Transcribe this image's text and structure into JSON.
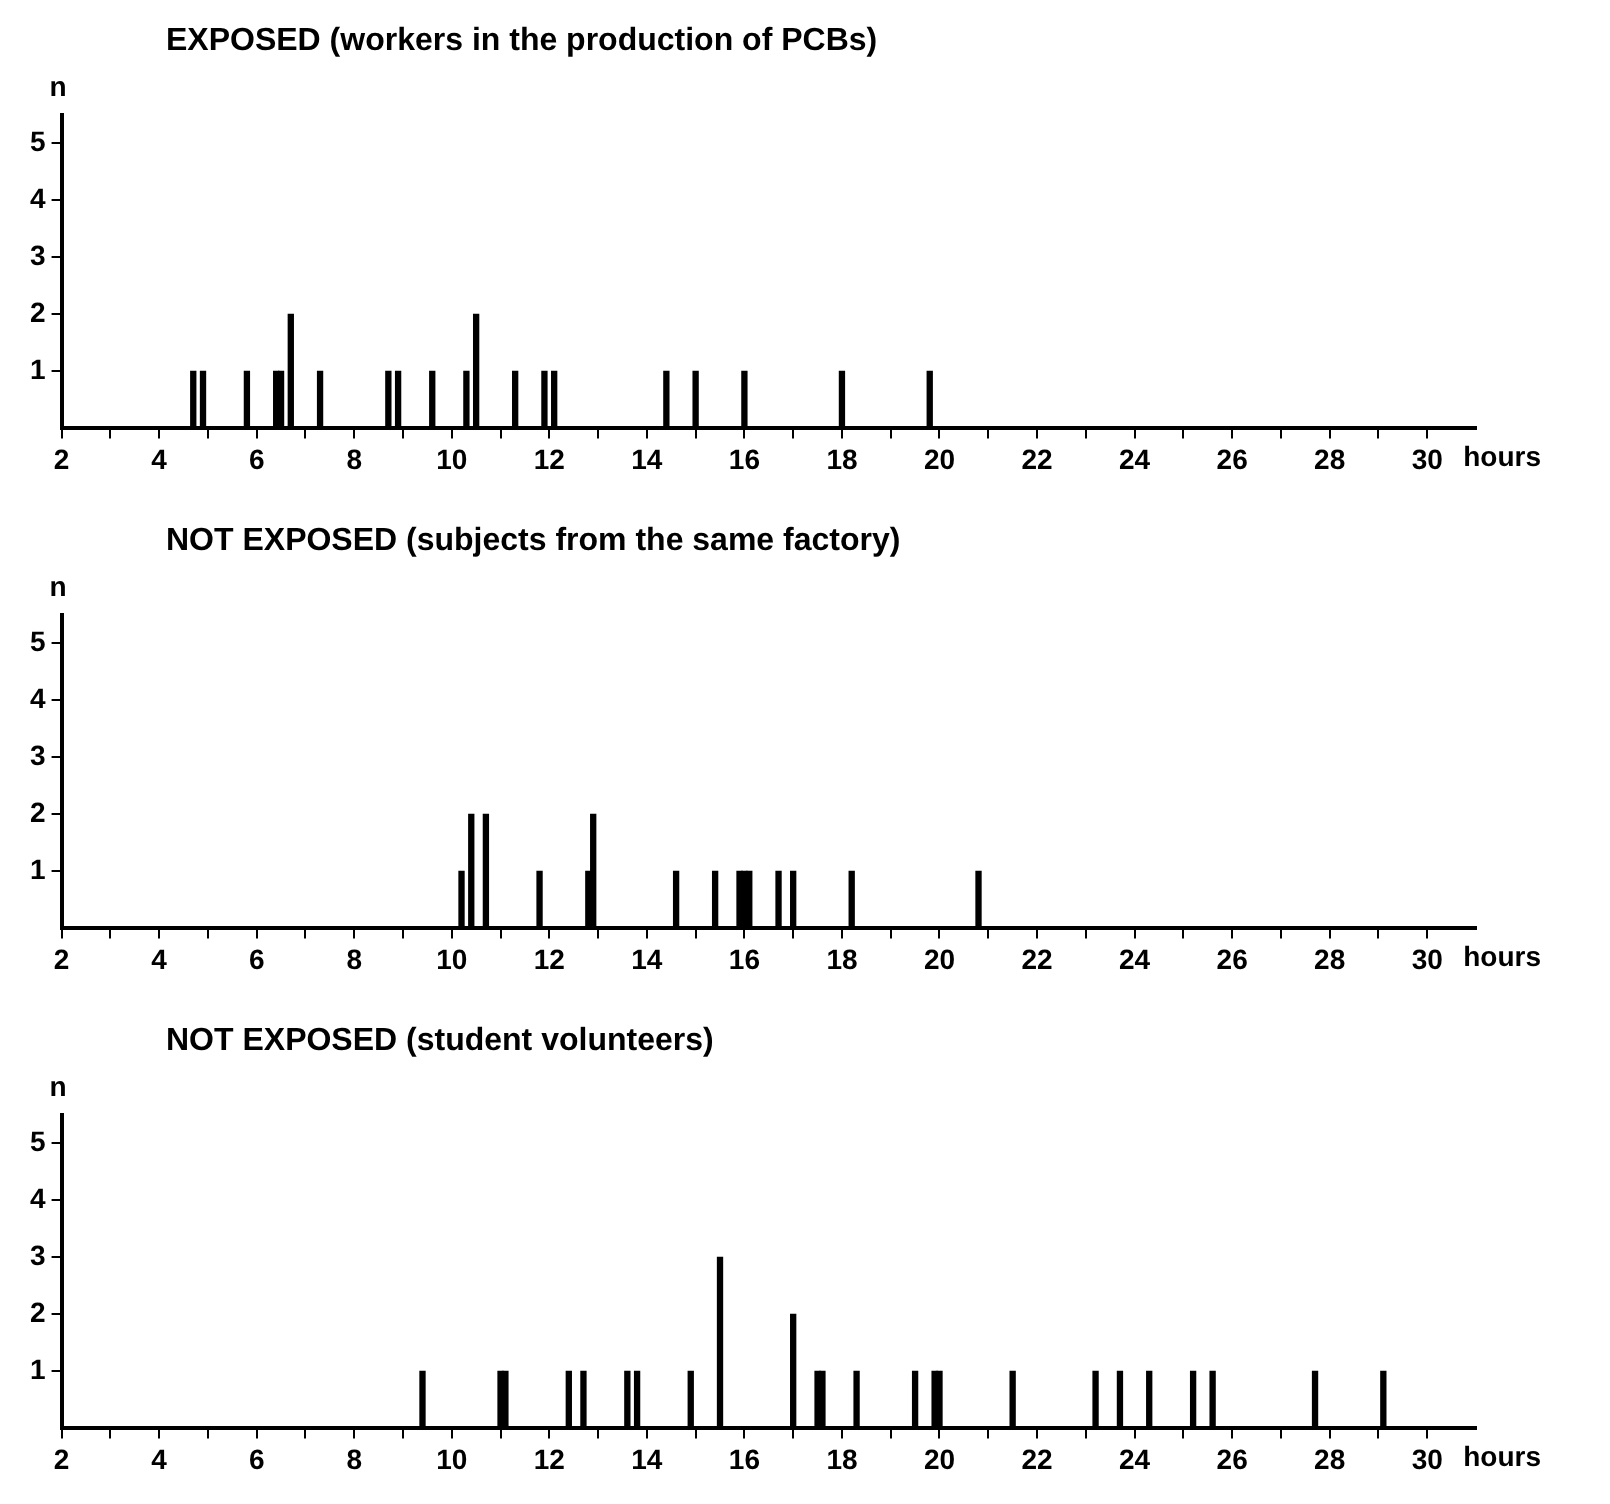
{
  "chart_data": [
    {
      "type": "bar",
      "title": "EXPOSED (workers in the production of PCBs)",
      "xlabel": "hours",
      "ylabel": "n",
      "color": "#000000",
      "grid": false,
      "x": [
        4.7,
        4.9,
        5.8,
        6.4,
        6.5,
        6.7,
        7.3,
        8.7,
        8.9,
        9.6,
        10.3,
        10.5,
        11.3,
        11.9,
        12.1,
        14.4,
        15.0,
        16.0,
        18.0,
        19.8
      ],
      "values": [
        1,
        1,
        1,
        1,
        1,
        2,
        1,
        1,
        1,
        1,
        1,
        2,
        1,
        1,
        1,
        1,
        1,
        1,
        1,
        1
      ],
      "xlim": [
        2,
        31
      ],
      "ylim": [
        0,
        5.5
      ],
      "yticks": [
        1,
        2,
        3,
        4,
        5
      ],
      "xticks": [
        2,
        {
          "value": 3,
          "label": null
        },
        4,
        {
          "value": 5,
          "label": null
        },
        6,
        {
          "value": 7,
          "label": null
        },
        8,
        {
          "value": 9,
          "label": null
        },
        10,
        {
          "value": 11,
          "label": null
        },
        12,
        {
          "value": 13,
          "label": null
        },
        14,
        {
          "value": 15,
          "label": null
        },
        16,
        {
          "value": 17,
          "label": null
        },
        18,
        {
          "value": 19,
          "label": null
        },
        20,
        {
          "value": 21,
          "label": null
        },
        22,
        {
          "value": 23,
          "label": null
        },
        24,
        {
          "value": 25,
          "label": null
        },
        26,
        {
          "value": 27,
          "label": null
        },
        28,
        {
          "value": 29,
          "label": null
        },
        30
      ]
    },
    {
      "type": "bar",
      "title": "NOT EXPOSED (subjects from the same factory)",
      "xlabel": "hours",
      "ylabel": "n",
      "color": "#000000",
      "grid": false,
      "x": [
        10.2,
        10.4,
        10.7,
        11.8,
        12.8,
        12.9,
        14.6,
        15.4,
        15.9,
        16.0,
        16.1,
        16.7,
        17.0,
        18.2,
        20.8
      ],
      "values": [
        1,
        2,
        2,
        1,
        1,
        2,
        1,
        1,
        1,
        1,
        1,
        1,
        1,
        1,
        1
      ],
      "xlim": [
        2,
        31
      ],
      "ylim": [
        0,
        5.5
      ],
      "yticks": [
        1,
        2,
        3,
        4,
        5
      ],
      "xticks": [
        2,
        {
          "value": 3,
          "label": null
        },
        4,
        {
          "value": 5,
          "label": null
        },
        6,
        {
          "value": 7,
          "label": null
        },
        8,
        {
          "value": 9,
          "label": null
        },
        10,
        {
          "value": 11,
          "label": null
        },
        12,
        {
          "value": 13,
          "label": null
        },
        14,
        {
          "value": 15,
          "label": null
        },
        16,
        {
          "value": 17,
          "label": null
        },
        18,
        {
          "value": 19,
          "label": null
        },
        20,
        {
          "value": 21,
          "label": null
        },
        22,
        {
          "value": 23,
          "label": null
        },
        24,
        {
          "value": 25,
          "label": null
        },
        26,
        {
          "value": 27,
          "label": null
        },
        28,
        {
          "value": 29,
          "label": null
        },
        30
      ]
    },
    {
      "type": "bar",
      "title": "NOT EXPOSED (student volunteers)",
      "xlabel": "hours",
      "ylabel": "n",
      "color": "#000000",
      "grid": false,
      "x": [
        9.4,
        11.0,
        11.1,
        12.4,
        12.7,
        13.6,
        13.8,
        14.9,
        15.5,
        17.0,
        17.5,
        17.6,
        18.3,
        19.5,
        19.9,
        20.0,
        21.5,
        23.2,
        23.7,
        24.3,
        25.2,
        25.6,
        27.7,
        29.1
      ],
      "values": [
        1,
        1,
        1,
        1,
        1,
        1,
        1,
        1,
        3,
        2,
        1,
        1,
        1,
        1,
        1,
        1,
        1,
        1,
        1,
        1,
        1,
        1,
        1,
        1
      ],
      "xlim": [
        2,
        31
      ],
      "ylim": [
        0,
        5.5
      ],
      "yticks": [
        1,
        2,
        3,
        4,
        5
      ],
      "xticks": [
        2,
        {
          "value": 3,
          "label": null
        },
        4,
        {
          "value": 5,
          "label": null
        },
        6,
        {
          "value": 7,
          "label": null
        },
        8,
        {
          "value": 9,
          "label": null
        },
        10,
        {
          "value": 11,
          "label": null
        },
        12,
        {
          "value": 13,
          "label": null
        },
        14,
        {
          "value": 15,
          "label": null
        },
        16,
        {
          "value": 17,
          "label": null
        },
        18,
        {
          "value": 19,
          "label": null
        },
        20,
        {
          "value": 21,
          "label": null
        },
        22,
        {
          "value": 23,
          "label": null
        },
        24,
        {
          "value": 25,
          "label": null
        },
        26,
        {
          "value": 27,
          "label": null
        },
        28,
        {
          "value": 29,
          "label": null
        },
        30
      ]
    }
  ]
}
